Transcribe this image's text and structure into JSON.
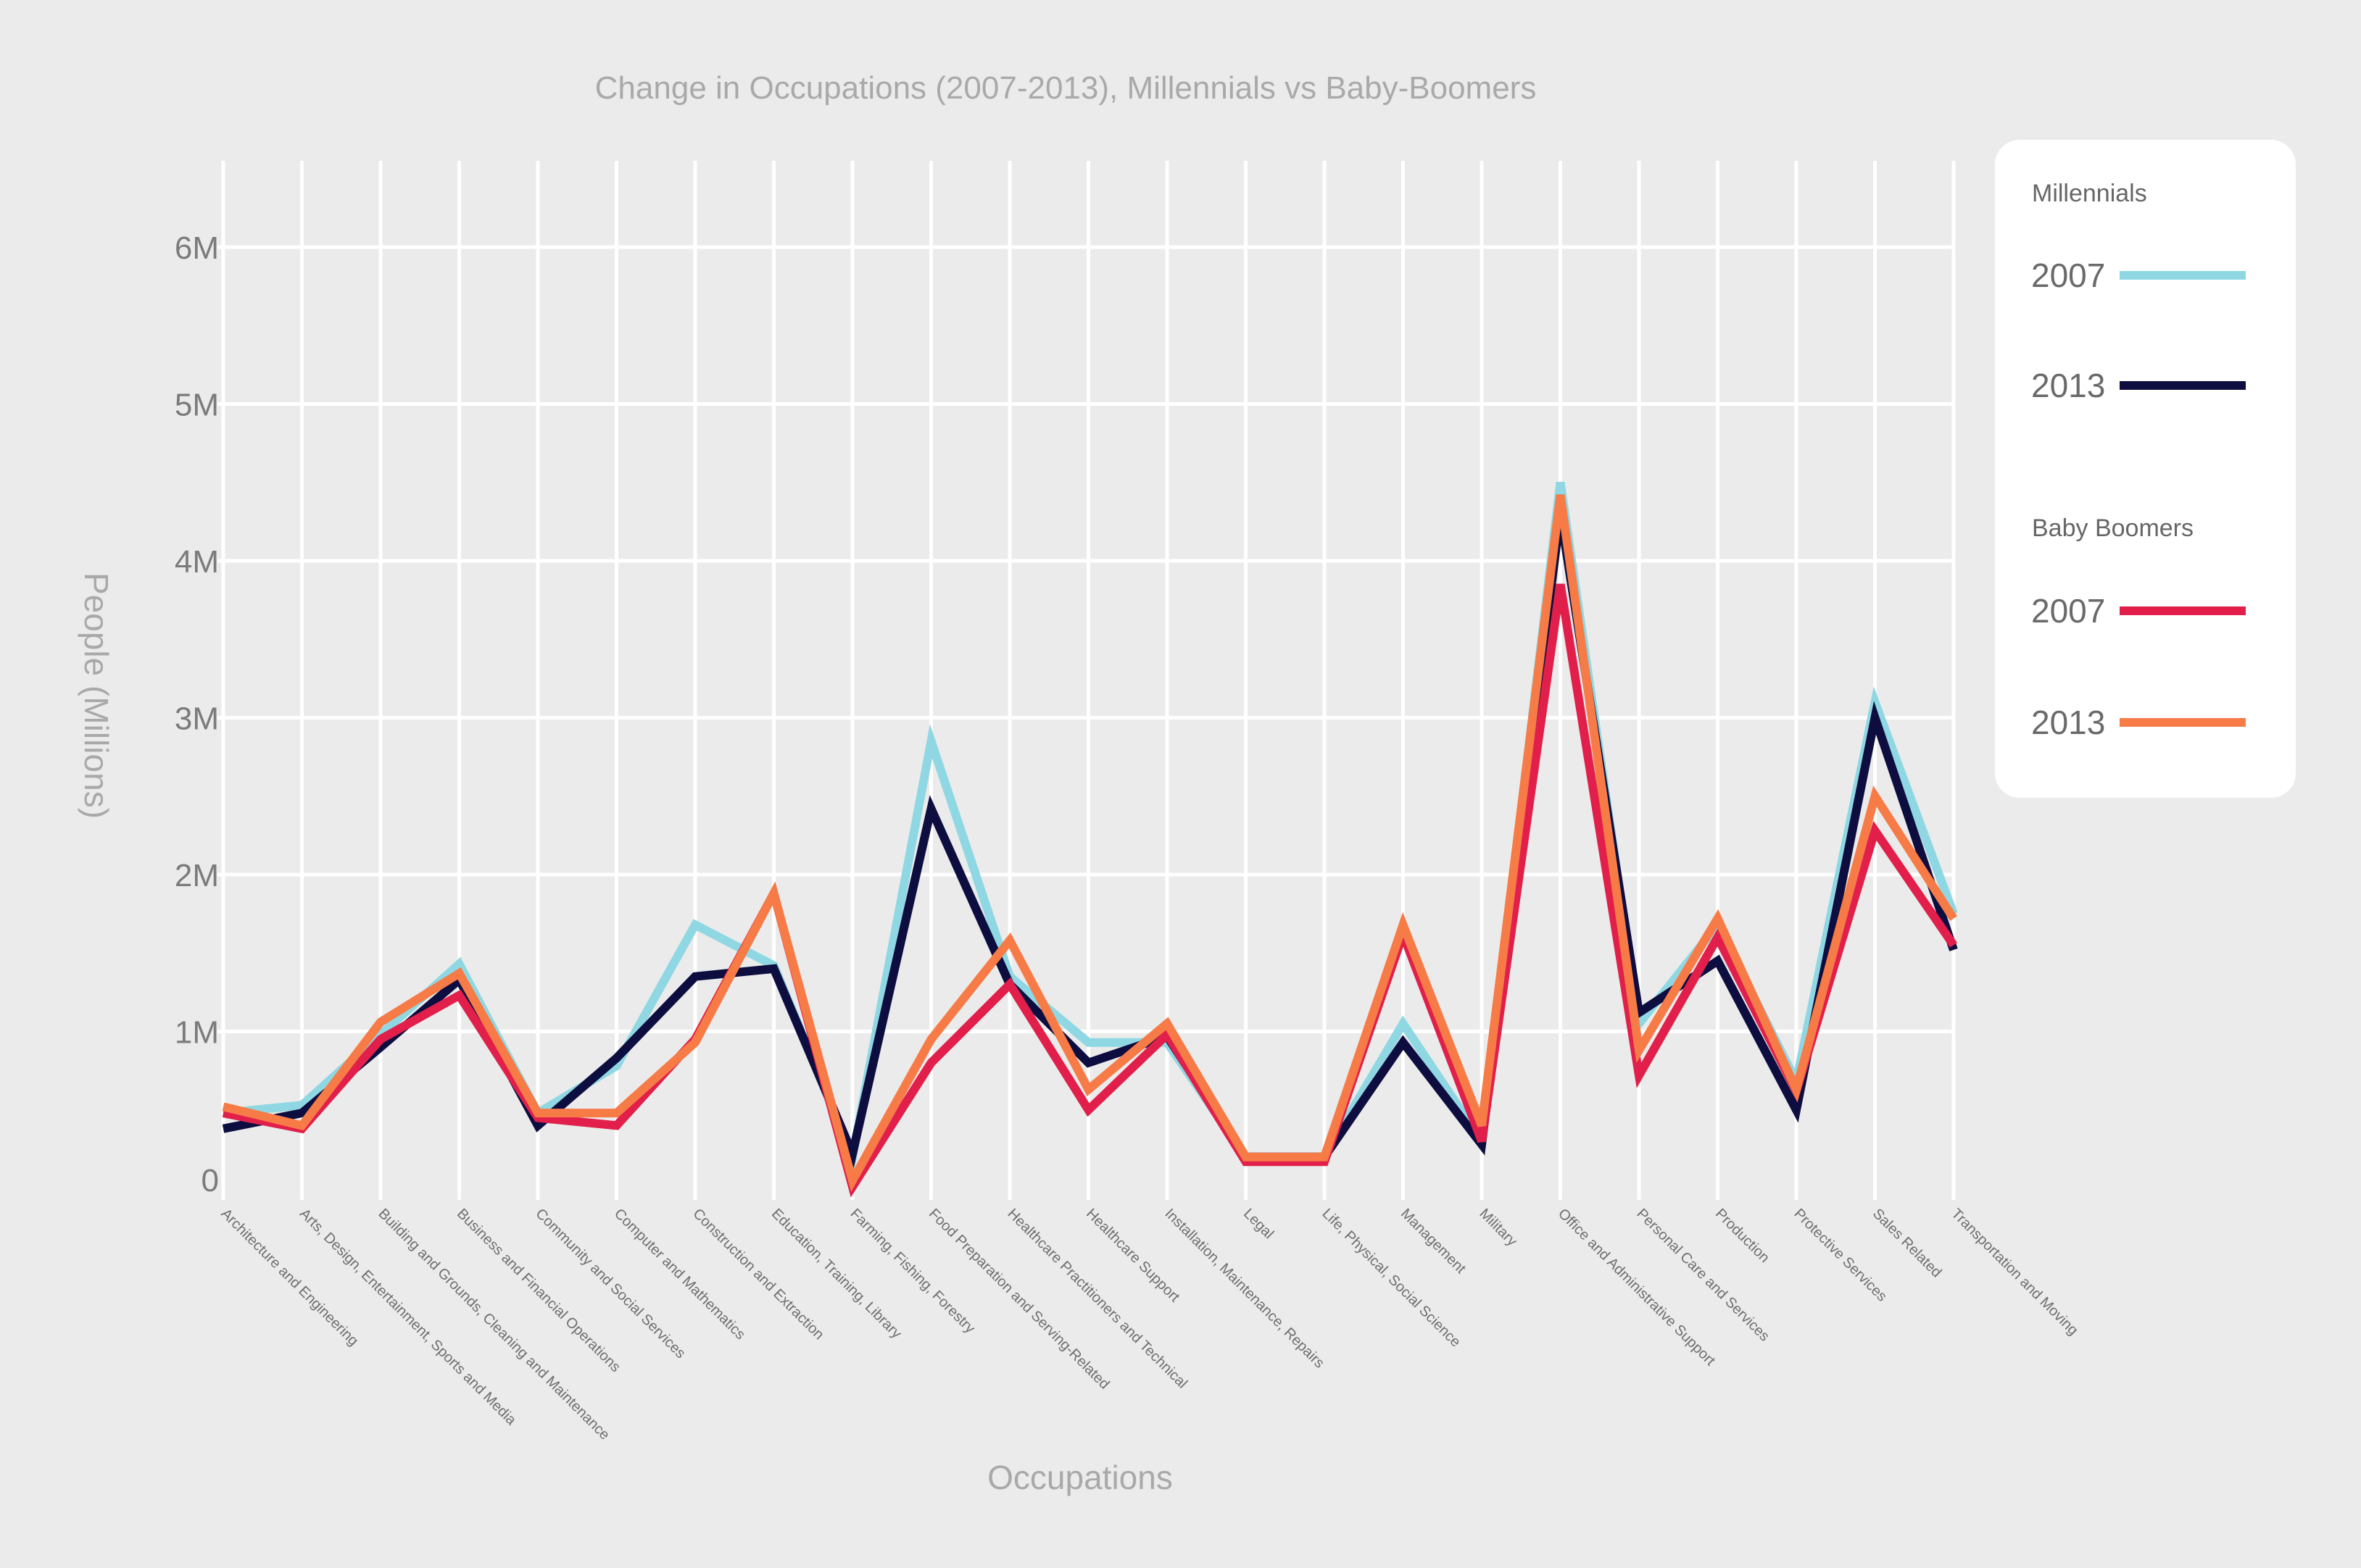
{
  "chart_data": {
    "type": "line",
    "title": "Change in Occupations (2007-2013), Millennials vs Baby-Boomers",
    "xlabel": "Occupations",
    "ylabel": "People (Millions)",
    "ylim": [
      0,
      6.6
    ],
    "yticks": [
      {
        "value": 0,
        "label": "0"
      },
      {
        "value": 1,
        "label": "1M"
      },
      {
        "value": 2,
        "label": "2M"
      },
      {
        "value": 3,
        "label": "3M"
      },
      {
        "value": 4,
        "label": "4M"
      },
      {
        "value": 5,
        "label": "5M"
      },
      {
        "value": 6,
        "label": "6M"
      }
    ],
    "grid": true,
    "legend_position": "right",
    "categories": [
      "Architecture and Engineering",
      "Arts, Design, Entertainment, Sports and Media",
      "Building and Grounds, Cleaning and Maintenance",
      "Business and Financial Operations",
      "Community and Social Services",
      "Computer and Mathematics",
      "Construction and Extraction",
      "Education, Training, Library",
      "Farming, Fishing, Forestry",
      "Food Preparation and Serving-Related",
      "Healthcare Practitioners and Technical",
      "Healthcare Support",
      "Installation, Maintenance, Repairs",
      "Legal",
      "Life, Physical, Social Science",
      "Management",
      "Military",
      "Office and Administrative Support",
      "Personal Care and Services",
      "Production",
      "Protective Services",
      "Sales Related",
      "Transportation and Moving"
    ],
    "series": [
      {
        "name": "2007",
        "group": "Millennials",
        "color": "#8fd8e3",
        "values": [
          0.48,
          0.53,
          0.98,
          1.43,
          0.48,
          0.78,
          1.68,
          1.42,
          0.2,
          2.85,
          1.35,
          0.93,
          0.93,
          0.2,
          0.2,
          1.05,
          0.3,
          4.5,
          1.05,
          1.68,
          0.68,
          3.1,
          1.75
        ]
      },
      {
        "name": "2013",
        "group": "Millennials",
        "color": "#0d0d40",
        "values": [
          0.38,
          0.48,
          0.9,
          1.33,
          0.4,
          0.83,
          1.35,
          1.4,
          0.22,
          2.42,
          1.3,
          0.8,
          0.97,
          0.2,
          0.2,
          0.93,
          0.28,
          4.3,
          1.12,
          1.45,
          0.5,
          3.0,
          1.52
        ]
      },
      {
        "name": "2007",
        "group": "Baby Boomers",
        "color": "#e11f4a",
        "values": [
          0.48,
          0.38,
          0.95,
          1.23,
          0.45,
          0.4,
          0.95,
          1.88,
          0.01,
          0.8,
          1.3,
          0.5,
          0.98,
          0.17,
          0.17,
          1.62,
          0.3,
          3.85,
          0.72,
          1.6,
          0.62,
          2.28,
          1.55
        ]
      },
      {
        "name": "2013",
        "group": "Baby Boomers",
        "color": "#f67b47",
        "values": [
          0.52,
          0.4,
          1.06,
          1.37,
          0.48,
          0.48,
          0.93,
          1.88,
          0.05,
          0.95,
          1.58,
          0.63,
          1.05,
          0.2,
          0.2,
          1.68,
          0.4,
          4.42,
          0.88,
          1.72,
          0.63,
          2.5,
          1.72
        ]
      }
    ],
    "legend": {
      "groups": [
        {
          "title": "Millennials",
          "entries": [
            {
              "label": "2007",
              "series": 0
            },
            {
              "label": "2013",
              "series": 1
            }
          ]
        },
        {
          "title": "Baby Boomers",
          "entries": [
            {
              "label": "2007",
              "series": 2
            },
            {
              "label": "2013",
              "series": 3
            }
          ]
        }
      ]
    }
  }
}
